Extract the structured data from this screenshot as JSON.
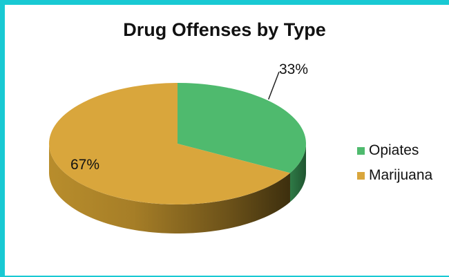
{
  "chart_data": {
    "type": "pie",
    "title": "Drug Offenses by Type",
    "slices": [
      {
        "label": "Opiates",
        "value": 33,
        "display": "33%",
        "color": "#4fba6e"
      },
      {
        "label": "Marijuana",
        "value": 67,
        "display": "67%",
        "color": "#d9a63c"
      }
    ],
    "legend_position": "right",
    "style": "3d"
  },
  "colors": {
    "frame": "#19c9d3"
  }
}
